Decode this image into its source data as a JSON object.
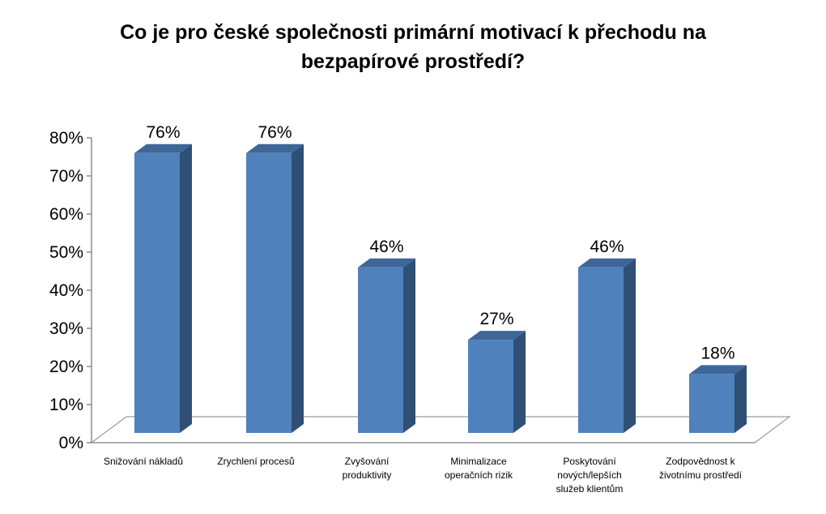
{
  "chart_data": {
    "type": "bar",
    "title_lines": [
      "Co je pro české společnosti primární motivací  k přechodu na",
      "bezpapírové prostředí?"
    ],
    "categories": [
      [
        "Snižování nákladů"
      ],
      [
        "Zrychlení procesů"
      ],
      [
        "Zvyšování",
        "produktivity"
      ],
      [
        "Minimalizace",
        "operačních rizik"
      ],
      [
        "Poskytování",
        "nových/lepších",
        "služeb klientům"
      ],
      [
        "Zodpovědnost k",
        "životnímu prostředí"
      ]
    ],
    "values": [
      76,
      76,
      46,
      27,
      46,
      18
    ],
    "data_labels": [
      "76%",
      "76%",
      "46%",
      "27%",
      "46%",
      "18%"
    ],
    "ylim": [
      0,
      80
    ],
    "yticks": [
      "0%",
      "10%",
      "20%",
      "30%",
      "40%",
      "50%",
      "60%",
      "70%",
      "80%"
    ],
    "bar_color_front": "#4F81BD",
    "bar_color_side": "#2F4F75",
    "bar_color_top": "#3E6699",
    "xlabel": "",
    "ylabel": "",
    "grid": false,
    "legend": "none"
  }
}
